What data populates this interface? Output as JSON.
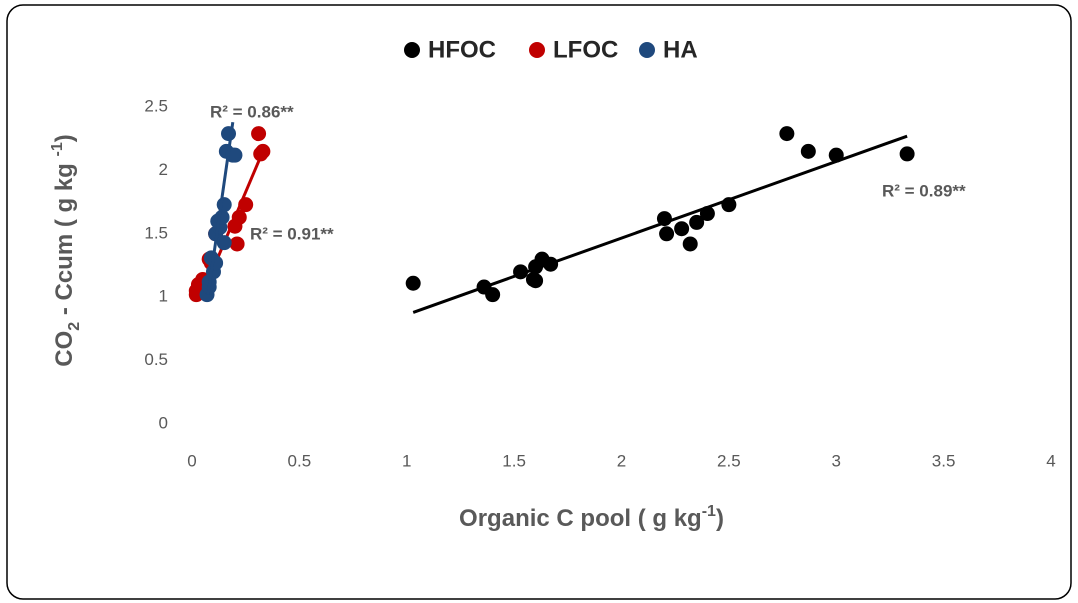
{
  "chart_data": {
    "type": "scatter",
    "x_label": [
      {
        "text": "Organic C pool ( g kg"
      },
      {
        "text": "-1",
        "shift": "sup"
      },
      {
        "text": ")"
      }
    ],
    "y_label": [
      {
        "text": "CO"
      },
      {
        "text": "2",
        "shift": "sub"
      },
      {
        "text": " -  Ccum ( g kg "
      },
      {
        "text": "-1",
        "shift": "sup"
      },
      {
        "text": ")"
      }
    ],
    "xlim": [
      0,
      4
    ],
    "xticks": [
      0,
      0.5,
      1,
      1.5,
      2,
      2.5,
      3,
      3.5,
      4
    ],
    "ylim": [
      0,
      2.5
    ],
    "yticks": [
      0,
      0.5,
      1,
      1.5,
      2,
      2.5
    ],
    "grid": false,
    "legend": "top",
    "series": [
      {
        "name": "HFOC",
        "color": "#000000",
        "x": [
          1.03,
          1.36,
          1.4,
          1.53,
          1.59,
          1.6,
          1.6,
          1.63,
          1.67,
          2.2,
          2.21,
          2.28,
          2.32,
          2.35,
          2.4,
          2.5,
          2.77,
          2.87,
          3.0,
          3.33
        ],
        "values": [
          1.11,
          1.08,
          1.02,
          1.2,
          1.14,
          1.13,
          1.24,
          1.3,
          1.26,
          1.62,
          1.5,
          1.54,
          1.42,
          1.59,
          1.66,
          1.73,
          2.29,
          2.15,
          2.12,
          2.13
        ],
        "trend": {
          "x": [
            1.03,
            3.33
          ],
          "values": [
            0.88,
            2.27
          ]
        }
      },
      {
        "name": "LFOC",
        "color": "#c00000",
        "x": [
          0.02,
          0.02,
          0.03,
          0.05,
          0.08,
          0.09,
          0.11,
          0.2,
          0.21,
          0.22,
          0.25,
          0.31,
          0.32,
          0.33
        ],
        "values": [
          1.02,
          1.05,
          1.1,
          1.14,
          1.3,
          1.27,
          1.5,
          1.56,
          1.42,
          1.63,
          1.73,
          2.29,
          2.13,
          2.15
        ],
        "trend": {
          "x": [
            0.04,
            0.33
          ],
          "values": [
            0.99,
            2.15
          ]
        }
      },
      {
        "name": "HA",
        "color": "#1f497d",
        "x": [
          0.07,
          0.08,
          0.08,
          0.09,
          0.1,
          0.11,
          0.11,
          0.12,
          0.13,
          0.14,
          0.15,
          0.15,
          0.16,
          0.17,
          0.19,
          0.2
        ],
        "values": [
          1.02,
          1.08,
          1.12,
          1.31,
          1.2,
          1.27,
          1.5,
          1.6,
          1.55,
          1.63,
          1.73,
          1.43,
          2.15,
          2.29,
          2.12,
          2.12
        ],
        "trend": {
          "x": [
            0.075,
            0.19
          ],
          "values": [
            1.02,
            2.38
          ]
        }
      }
    ],
    "annotations": [
      "R² = 0.86**",
      "R² = 0.91**",
      "R² = 0.89**"
    ]
  }
}
